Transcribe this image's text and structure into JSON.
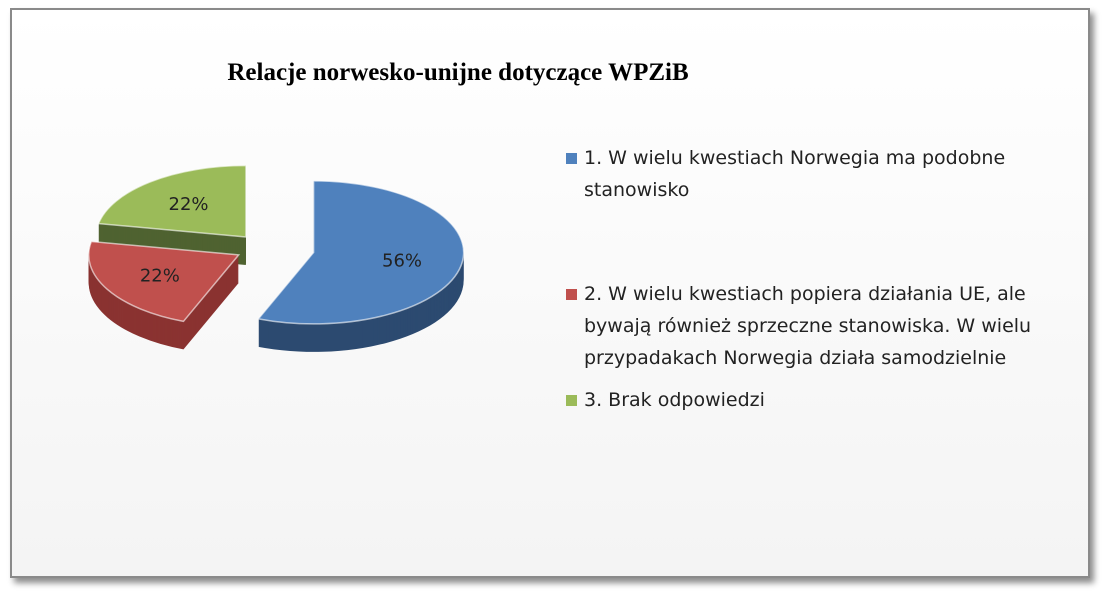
{
  "chart_data": {
    "type": "pie",
    "title": "Relacje norwesko-unijne dotyczące WPZiB",
    "categories": [
      "1. W wielu kwestiach Norwegia ma podobne stanowisko",
      "2. W wielu kwestiach popiera działania UE, ale bywają również sprzeczne stanowiska. W wielu przypadakach Norwegia działa samodzielnie",
      "3. Brak odpowiedzi"
    ],
    "values": [
      56,
      22,
      22
    ],
    "value_labels": [
      "56%",
      "22%",
      "22%"
    ],
    "colors": [
      "#4f81bd",
      "#c0504d",
      "#9bbb59"
    ],
    "side_colors": [
      "#2c4a70",
      "#8a3331",
      "#4f6230"
    ],
    "legend": "right"
  }
}
